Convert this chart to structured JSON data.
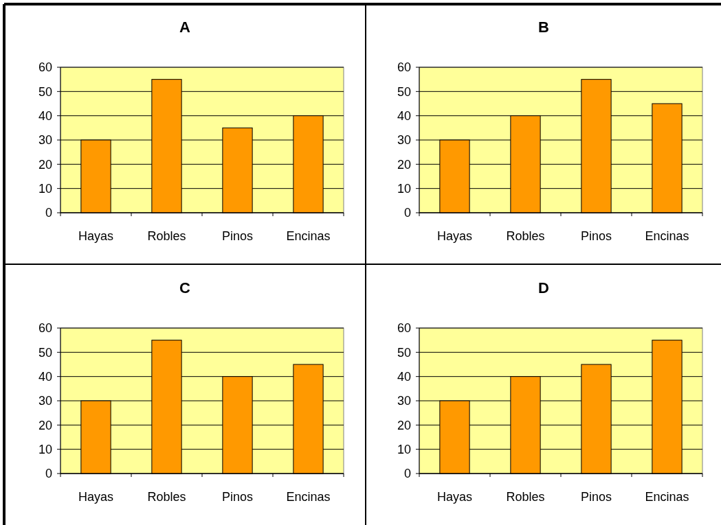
{
  "chart_data": [
    {
      "type": "bar",
      "title": "A",
      "categories": [
        "Hayas",
        "Robles",
        "Pinos",
        "Encinas"
      ],
      "values": [
        30,
        55,
        35,
        40
      ],
      "color": "#ff9900",
      "ylim": [
        0,
        60
      ],
      "yticks": [
        0,
        10,
        20,
        30,
        40,
        50,
        60
      ],
      "grid": "y"
    },
    {
      "type": "bar",
      "title": "B",
      "categories": [
        "Hayas",
        "Robles",
        "Pinos",
        "Encinas"
      ],
      "values": [
        30,
        40,
        55,
        45
      ],
      "color": "#ff9900",
      "ylim": [
        0,
        60
      ],
      "yticks": [
        0,
        10,
        20,
        30,
        40,
        50,
        60
      ],
      "grid": "y"
    },
    {
      "type": "bar",
      "title": "C",
      "categories": [
        "Hayas",
        "Robles",
        "Pinos",
        "Encinas"
      ],
      "values": [
        30,
        55,
        40,
        45
      ],
      "color": "#ff9900",
      "ylim": [
        0,
        60
      ],
      "yticks": [
        0,
        10,
        20,
        30,
        40,
        50,
        60
      ],
      "grid": "y"
    },
    {
      "type": "bar",
      "title": "D",
      "categories": [
        "Hayas",
        "Robles",
        "Pinos",
        "Encinas"
      ],
      "values": [
        30,
        40,
        45,
        55
      ],
      "color": "#ff9900",
      "ylim": [
        0,
        60
      ],
      "yticks": [
        0,
        10,
        20,
        30,
        40,
        50,
        60
      ],
      "grid": "y"
    }
  ]
}
